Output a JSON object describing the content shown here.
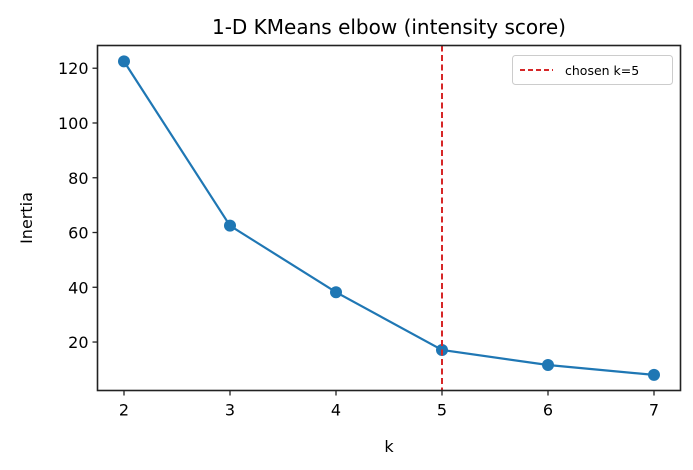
{
  "chart_data": {
    "type": "line",
    "title": "1-D KMeans elbow (intensity score)",
    "xlabel": "k",
    "ylabel": "Inertia",
    "x": [
      2,
      3,
      4,
      5,
      6,
      7
    ],
    "series": [
      {
        "name": "Inertia",
        "values": [
          122.5,
          62.5,
          38.2,
          17.1,
          11.6,
          8.0
        ],
        "color": "#1f77b4",
        "marker": "circle"
      }
    ],
    "annotations": [
      {
        "type": "vline",
        "x": 5,
        "style": "dashed",
        "color": "#d62728",
        "label": "chosen k=5"
      }
    ],
    "xticks": [
      2,
      3,
      4,
      5,
      6,
      7
    ],
    "yticks": [
      20,
      40,
      60,
      80,
      100,
      120
    ],
    "xlim": [
      1.75,
      7.25
    ],
    "ylim": [
      2.3,
      128.3
    ],
    "grid": false,
    "legend": {
      "position": "upper right",
      "entries": [
        "chosen k=5"
      ]
    }
  }
}
